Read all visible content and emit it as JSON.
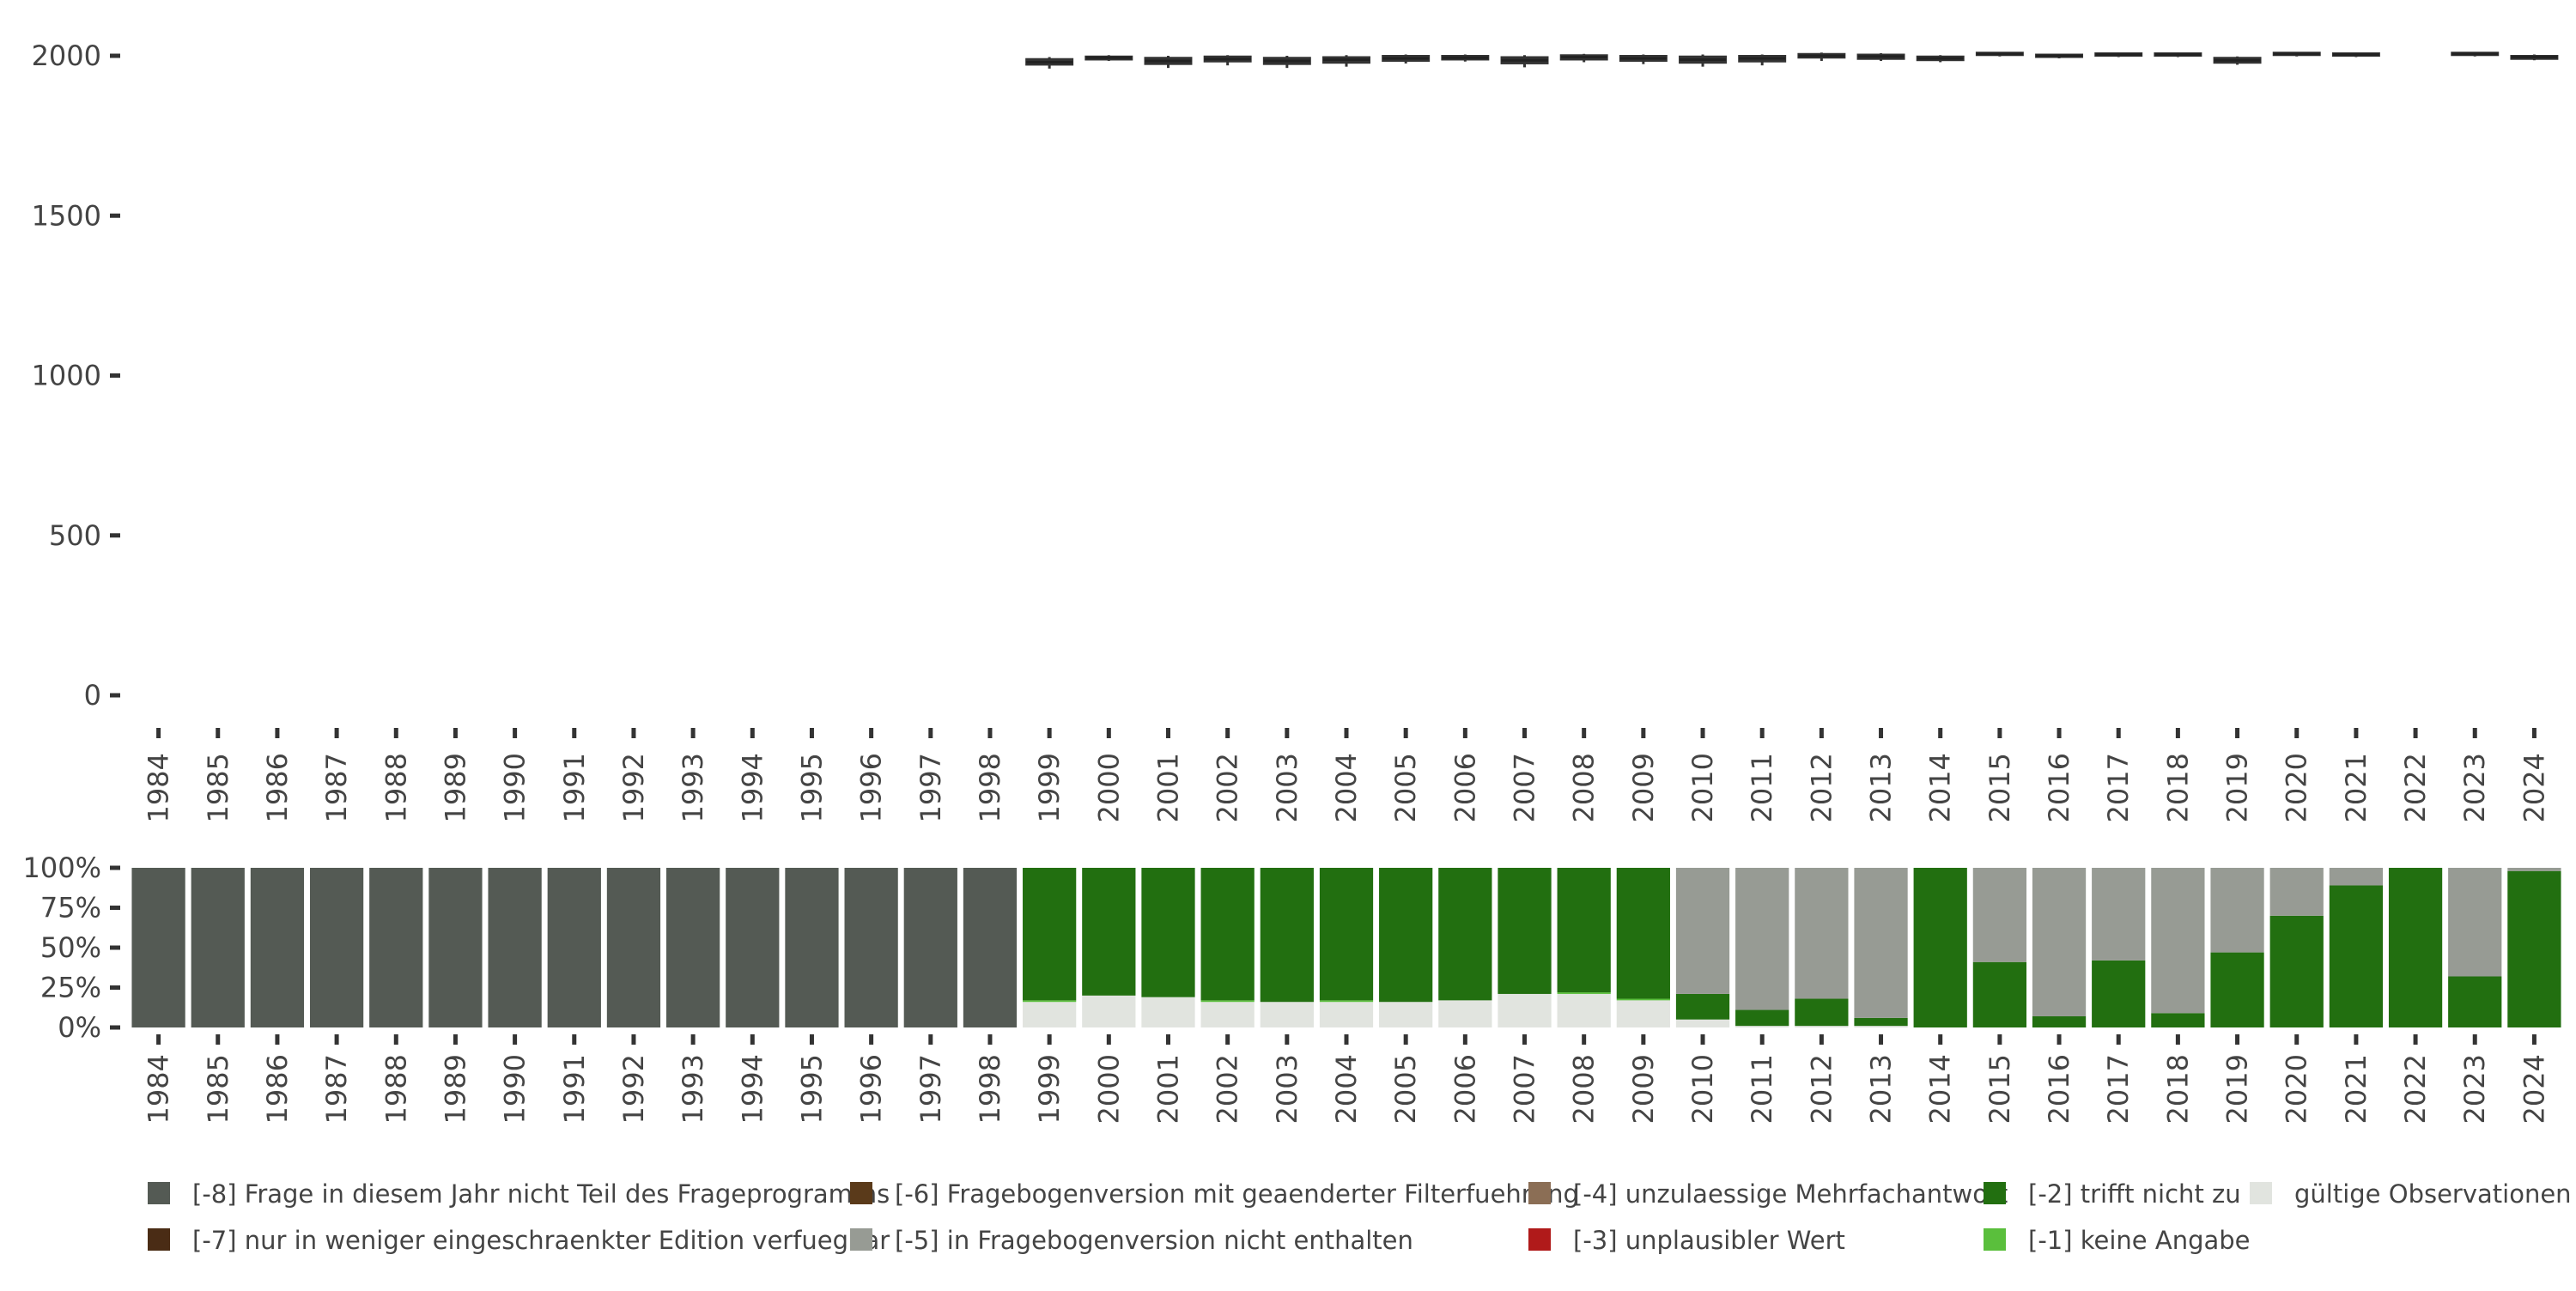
{
  "chart_data": [
    {
      "type": "box",
      "title": "",
      "xlabel": "",
      "ylabel": "",
      "ylim": [
        0,
        2000
      ],
      "yticks": [
        0,
        500,
        1000,
        1500,
        2000
      ],
      "categories": [
        "1984",
        "1985",
        "1986",
        "1987",
        "1988",
        "1989",
        "1990",
        "1991",
        "1992",
        "1993",
        "1994",
        "1995",
        "1996",
        "1997",
        "1998",
        "1999",
        "2000",
        "2001",
        "2002",
        "2003",
        "2004",
        "2005",
        "2006",
        "2007",
        "2008",
        "2009",
        "2010",
        "2011",
        "2012",
        "2013",
        "2014",
        "2015",
        "2016",
        "2017",
        "2018",
        "2019",
        "2020",
        "2021",
        "2022",
        "2023",
        "2024"
      ],
      "boxes": [
        {
          "year": "1999",
          "whisker_low": 1960,
          "q1": 1972,
          "median": 1980,
          "q3": 1990,
          "whisker_high": 1996
        },
        {
          "year": "2000",
          "whisker_low": 1984,
          "q1": 1988,
          "median": 1994,
          "q3": 1998,
          "whisker_high": 2002
        },
        {
          "year": "2001",
          "whisker_low": 1962,
          "q1": 1974,
          "median": 1984,
          "q3": 1994,
          "whisker_high": 2000
        },
        {
          "year": "2002",
          "whisker_low": 1970,
          "q1": 1982,
          "median": 1990,
          "q3": 1998,
          "whisker_high": 2002
        },
        {
          "year": "2003",
          "whisker_low": 1962,
          "q1": 1974,
          "median": 1984,
          "q3": 1994,
          "whisker_high": 2000
        },
        {
          "year": "2004",
          "whisker_low": 1966,
          "q1": 1978,
          "median": 1988,
          "q3": 1996,
          "whisker_high": 2002
        },
        {
          "year": "2005",
          "whisker_low": 1976,
          "q1": 1984,
          "median": 1992,
          "q3": 2000,
          "whisker_high": 2004
        },
        {
          "year": "2006",
          "whisker_low": 1982,
          "q1": 1988,
          "median": 1994,
          "q3": 2000,
          "whisker_high": 2004
        },
        {
          "year": "2007",
          "whisker_low": 1964,
          "q1": 1976,
          "median": 1986,
          "q3": 1996,
          "whisker_high": 2002
        },
        {
          "year": "2008",
          "whisker_low": 1980,
          "q1": 1988,
          "median": 1996,
          "q3": 2002,
          "whisker_high": 2006
        },
        {
          "year": "2009",
          "whisker_low": 1974,
          "q1": 1984,
          "median": 1992,
          "q3": 2000,
          "whisker_high": 2004
        },
        {
          "year": "2010",
          "whisker_low": 1966,
          "q1": 1978,
          "median": 1988,
          "q3": 1998,
          "whisker_high": 2004
        },
        {
          "year": "2011",
          "whisker_low": 1970,
          "q1": 1982,
          "median": 1992,
          "q3": 2000,
          "whisker_high": 2004
        },
        {
          "year": "2012",
          "whisker_low": 1984,
          "q1": 1994,
          "median": 2000,
          "q3": 2006,
          "whisker_high": 2010
        },
        {
          "year": "2013",
          "whisker_low": 1984,
          "q1": 1990,
          "median": 1998,
          "q3": 2004,
          "whisker_high": 2008
        },
        {
          "year": "2014",
          "whisker_low": 1980,
          "q1": 1986,
          "median": 1992,
          "q3": 1998,
          "whisker_high": 2002
        },
        {
          "year": "2015",
          "whisker_low": 1998,
          "q1": 2002,
          "median": 2006,
          "q3": 2010,
          "whisker_high": 2012
        },
        {
          "year": "2016",
          "whisker_low": 1992,
          "q1": 1996,
          "median": 2000,
          "q3": 2004,
          "whisker_high": 2006
        },
        {
          "year": "2017",
          "whisker_low": 1996,
          "q1": 2000,
          "median": 2004,
          "q3": 2008,
          "whisker_high": 2010
        },
        {
          "year": "2018",
          "whisker_low": 1996,
          "q1": 2000,
          "median": 2004,
          "q3": 2008,
          "whisker_high": 2010
        },
        {
          "year": "2019",
          "whisker_low": 1972,
          "q1": 1978,
          "median": 1986,
          "q3": 1994,
          "whisker_high": 1998
        },
        {
          "year": "2020",
          "whisker_low": 1998,
          "q1": 2002,
          "median": 2006,
          "q3": 2010,
          "whisker_high": 2012
        },
        {
          "year": "2021",
          "whisker_low": 1996,
          "q1": 2000,
          "median": 2004,
          "q3": 2008,
          "whisker_high": 2010
        },
        {
          "year": "2023",
          "whisker_low": 1998,
          "q1": 2002,
          "median": 2006,
          "q3": 2010,
          "whisker_high": 2012
        },
        {
          "year": "2024",
          "whisker_low": 1986,
          "q1": 1990,
          "median": 1996,
          "q3": 2000,
          "whisker_high": 2004
        }
      ]
    },
    {
      "type": "bar",
      "stacked": true,
      "normalized": true,
      "title": "",
      "xlabel": "",
      "ylabel": "",
      "yticks": [
        "0%",
        "25%",
        "50%",
        "75%",
        "100%"
      ],
      "categories": [
        "1984",
        "1985",
        "1986",
        "1987",
        "1988",
        "1989",
        "1990",
        "1991",
        "1992",
        "1993",
        "1994",
        "1995",
        "1996",
        "1997",
        "1998",
        "1999",
        "2000",
        "2001",
        "2002",
        "2003",
        "2004",
        "2005",
        "2006",
        "2007",
        "2008",
        "2009",
        "2010",
        "2011",
        "2012",
        "2013",
        "2014",
        "2015",
        "2016",
        "2017",
        "2018",
        "2019",
        "2020",
        "2021",
        "2022",
        "2023",
        "2024"
      ],
      "series": [
        {
          "name": "gültige Observationen",
          "color": "#e1e4df",
          "values": [
            0,
            0,
            0,
            0,
            0,
            0,
            0,
            0,
            0,
            0,
            0,
            0,
            0,
            0,
            0,
            16,
            20,
            19,
            16,
            16,
            16,
            16,
            17,
            21,
            21,
            17,
            5,
            1,
            1,
            1,
            0,
            0,
            0,
            0,
            0,
            0,
            0,
            0,
            0,
            0,
            0
          ]
        },
        {
          "name": "[-1] keine Angabe",
          "color": "#5abf3c",
          "values": [
            0,
            0,
            0,
            0,
            0,
            0,
            0,
            0,
            0,
            0,
            0,
            0,
            0,
            0,
            0,
            1,
            0,
            0,
            1,
            0,
            1,
            0,
            0,
            0,
            1,
            1,
            0,
            0,
            0,
            0,
            0,
            0,
            0,
            0,
            0,
            0,
            0,
            0,
            0,
            0,
            0
          ]
        },
        {
          "name": "[-2] trifft nicht zu",
          "color": "#226f10",
          "values": [
            0,
            0,
            0,
            0,
            0,
            0,
            0,
            0,
            0,
            0,
            0,
            0,
            0,
            0,
            0,
            83,
            80,
            81,
            83,
            84,
            83,
            84,
            83,
            79,
            78,
            82,
            16,
            10,
            17,
            5,
            100,
            41,
            7,
            42,
            9,
            47,
            70,
            89,
            100,
            32,
            98
          ]
        },
        {
          "name": "[-3] unplausibler Wert",
          "color": "#b01a1a",
          "values": [
            0,
            0,
            0,
            0,
            0,
            0,
            0,
            0,
            0,
            0,
            0,
            0,
            0,
            0,
            0,
            0,
            0,
            0,
            0,
            0,
            0,
            0,
            0,
            0,
            0,
            0,
            0,
            0,
            0,
            0,
            0,
            0,
            0,
            0,
            0,
            0,
            0,
            0,
            0,
            0,
            0
          ]
        },
        {
          "name": "[-4] unzulaessige Mehrfachantwort",
          "color": "#8b6e55",
          "values": [
            0,
            0,
            0,
            0,
            0,
            0,
            0,
            0,
            0,
            0,
            0,
            0,
            0,
            0,
            0,
            0,
            0,
            0,
            0,
            0,
            0,
            0,
            0,
            0,
            0,
            0,
            0,
            0,
            0,
            0,
            0,
            0,
            0,
            0,
            0,
            0,
            0,
            0,
            0,
            0,
            0
          ]
        },
        {
          "name": "[-5] in Fragebogenversion nicht enthalten",
          "color": "#979b94",
          "values": [
            0,
            0,
            0,
            0,
            0,
            0,
            0,
            0,
            0,
            0,
            0,
            0,
            0,
            0,
            0,
            0,
            0,
            0,
            0,
            0,
            0,
            0,
            0,
            0,
            0,
            0,
            79,
            89,
            82,
            94,
            0,
            59,
            93,
            58,
            91,
            53,
            30,
            11,
            0,
            68,
            2
          ]
        },
        {
          "name": "[-6] Fragebogenversion mit geaenderter Filterfuehrung",
          "color": "#5a3a1a",
          "values": [
            0,
            0,
            0,
            0,
            0,
            0,
            0,
            0,
            0,
            0,
            0,
            0,
            0,
            0,
            0,
            0,
            0,
            0,
            0,
            0,
            0,
            0,
            0,
            0,
            0,
            0,
            0,
            0,
            0,
            0,
            0,
            0,
            0,
            0,
            0,
            0,
            0,
            0,
            0,
            0,
            0
          ]
        },
        {
          "name": "[-7] nur in weniger eingeschraenkter Edition verfuegbar",
          "color": "#4a2c15",
          "values": [
            0,
            0,
            0,
            0,
            0,
            0,
            0,
            0,
            0,
            0,
            0,
            0,
            0,
            0,
            0,
            0,
            0,
            0,
            0,
            0,
            0,
            0,
            0,
            0,
            0,
            0,
            0,
            0,
            0,
            0,
            0,
            0,
            0,
            0,
            0,
            0,
            0,
            0,
            0,
            0,
            0
          ]
        },
        {
          "name": "[-8] Frage in diesem Jahr nicht Teil des Frageprogramms",
          "color": "#545a54",
          "values": [
            100,
            100,
            100,
            100,
            100,
            100,
            100,
            100,
            100,
            100,
            100,
            100,
            100,
            100,
            100,
            0,
            0,
            0,
            0,
            0,
            0,
            0,
            0,
            0,
            0,
            0,
            0,
            0,
            0,
            0,
            0,
            0,
            0,
            0,
            0,
            0,
            0,
            0,
            0,
            0,
            0
          ]
        }
      ],
      "legend": {
        "placement": "bottom",
        "entries": [
          {
            "label": "[-8] Frage in diesem Jahr nicht Teil des Frageprogramms",
            "color": "#545a54"
          },
          {
            "label": "[-6] Fragebogenversion mit geaenderter Filterfuehrung",
            "color": "#5a3a1a"
          },
          {
            "label": "[-4] unzulaessige Mehrfachantwort",
            "color": "#8b6e55"
          },
          {
            "label": "[-2] trifft nicht zu",
            "color": "#226f10"
          },
          {
            "label": "gültige Observationen",
            "color": "#e1e4df"
          },
          {
            "label": "[-7] nur in weniger eingeschraenkter Edition verfuegbar",
            "color": "#4a2c15"
          },
          {
            "label": "[-5] in Fragebogenversion nicht enthalten",
            "color": "#979b94"
          },
          {
            "label": "[-3] unplausibler Wert",
            "color": "#b01a1a"
          },
          {
            "label": "[-1] keine Angabe",
            "color": "#5abf3c"
          }
        ]
      }
    }
  ]
}
